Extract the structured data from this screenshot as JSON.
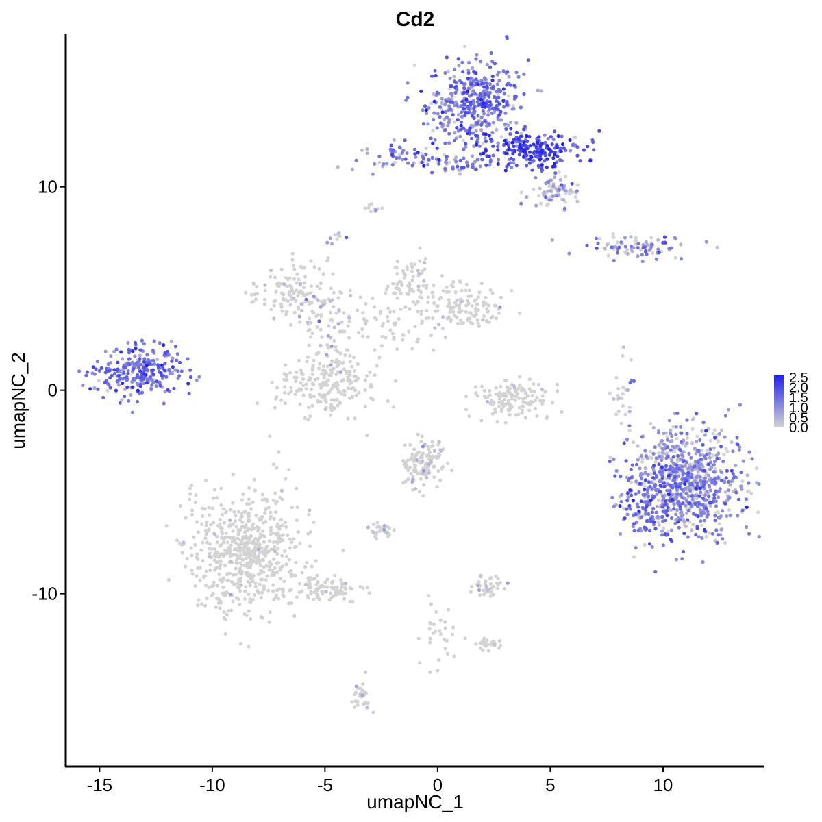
{
  "chart_data": {
    "type": "scatter",
    "title": "Cd2",
    "xlabel": "umapNC_1",
    "ylabel": "umapNC_2",
    "xlim": [
      -16.5,
      14.5
    ],
    "ylim": [
      -18.5,
      17.5
    ],
    "x_ticks": [
      -15,
      -10,
      -5,
      0,
      5,
      10
    ],
    "y_ticks": [
      -10,
      0,
      10
    ],
    "grid": false,
    "color_scale": {
      "low_color": "#d3d3d3",
      "high_color": "#2222ee",
      "range": [
        0,
        2.6
      ],
      "ticks": [
        "0.0",
        "0.5",
        "1.0",
        "1.5",
        "2.0",
        "2.5"
      ],
      "legend_position": "right"
    },
    "point_color_base": "#d3d3d3",
    "clusters": [
      {
        "center": [
          1.8,
          14.0
        ],
        "spread": [
          1.1,
          1.1
        ],
        "count": 420,
        "expression_mean": 1.3
      },
      {
        "center": [
          4.2,
          11.8
        ],
        "spread": [
          1.2,
          0.5
        ],
        "count": 200,
        "expression_mean": 1.9
      },
      {
        "center": [
          -1.6,
          11.5
        ],
        "spread": [
          1.0,
          0.3
        ],
        "count": 60,
        "expression_mean": 1.2
      },
      {
        "center": [
          1.0,
          11.1
        ],
        "spread": [
          0.9,
          0.2
        ],
        "count": 40,
        "expression_mean": 1.3
      },
      {
        "center": [
          5.2,
          9.7
        ],
        "spread": [
          0.6,
          0.4
        ],
        "count": 70,
        "expression_mean": 0.8
      },
      {
        "center": [
          9.0,
          7.0
        ],
        "spread": [
          1.3,
          0.3
        ],
        "count": 80,
        "expression_mean": 1.0
      },
      {
        "center": [
          -13.2,
          0.9
        ],
        "spread": [
          1.0,
          0.6
        ],
        "count": 260,
        "expression_mean": 1.4
      },
      {
        "center": [
          11.0,
          -4.5
        ],
        "spread": [
          1.2,
          1.3
        ],
        "count": 800,
        "expression_mean": 1.1
      },
      {
        "center": [
          9.0,
          -5.5
        ],
        "spread": [
          0.5,
          0.8
        ],
        "count": 80,
        "expression_mean": 1.4
      },
      {
        "center": [
          -6.6,
          4.8
        ],
        "spread": [
          0.9,
          0.7
        ],
        "count": 120,
        "expression_mean": 0.1
      },
      {
        "center": [
          -5.0,
          3.5
        ],
        "spread": [
          0.5,
          1.0
        ],
        "count": 60,
        "expression_mean": 0.4
      },
      {
        "center": [
          -1.0,
          5.4
        ],
        "spread": [
          0.5,
          0.6
        ],
        "count": 60,
        "expression_mean": 0.1
      },
      {
        "center": [
          1.3,
          4.2
        ],
        "spread": [
          0.8,
          0.5
        ],
        "count": 110,
        "expression_mean": 0.05
      },
      {
        "center": [
          -2.0,
          3.5
        ],
        "spread": [
          1.5,
          0.8
        ],
        "count": 90,
        "expression_mean": 0.05
      },
      {
        "center": [
          -5.0,
          0.4
        ],
        "spread": [
          1.0,
          0.9
        ],
        "count": 220,
        "expression_mean": 0.02
      },
      {
        "center": [
          3.3,
          -0.4
        ],
        "spread": [
          0.8,
          0.5
        ],
        "count": 140,
        "expression_mean": 0.03
      },
      {
        "center": [
          -0.6,
          -3.6
        ],
        "spread": [
          0.5,
          0.6
        ],
        "count": 130,
        "expression_mean": 0.2
      },
      {
        "center": [
          -8.5,
          -8.0
        ],
        "spread": [
          1.2,
          1.5
        ],
        "count": 620,
        "expression_mean": 0.02
      },
      {
        "center": [
          -4.8,
          -9.8
        ],
        "spread": [
          0.8,
          0.3
        ],
        "count": 90,
        "expression_mean": 0.02
      },
      {
        "center": [
          -2.5,
          -6.9
        ],
        "spread": [
          0.3,
          0.2
        ],
        "count": 30,
        "expression_mean": 0.1
      },
      {
        "center": [
          2.2,
          -9.6
        ],
        "spread": [
          0.4,
          0.3
        ],
        "count": 40,
        "expression_mean": 0.2
      },
      {
        "center": [
          2.2,
          -12.5
        ],
        "spread": [
          0.3,
          0.15
        ],
        "count": 25,
        "expression_mean": 0.05
      },
      {
        "center": [
          -3.4,
          -14.8
        ],
        "spread": [
          0.2,
          0.5
        ],
        "count": 30,
        "expression_mean": 0.2
      },
      {
        "center": [
          -2.8,
          8.9
        ],
        "spread": [
          0.2,
          0.1
        ],
        "count": 10,
        "expression_mean": 0.05
      },
      {
        "center": [
          -4.5,
          7.4
        ],
        "spread": [
          0.15,
          0.15
        ],
        "count": 10,
        "expression_mean": 0.8
      },
      {
        "center": [
          8.2,
          0.0
        ],
        "spread": [
          0.2,
          0.9
        ],
        "count": 25,
        "expression_mean": 0.6
      },
      {
        "center": [
          0.1,
          -12.0
        ],
        "spread": [
          0.5,
          1.0
        ],
        "count": 30,
        "expression_mean": 0.05
      }
    ]
  }
}
